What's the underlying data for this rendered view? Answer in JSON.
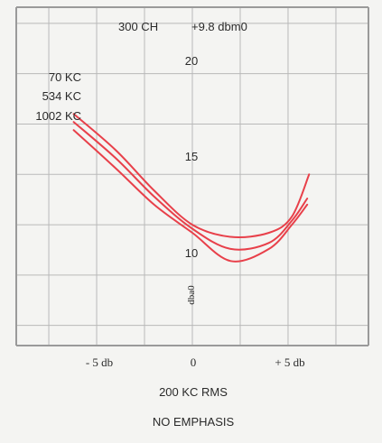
{
  "header": {
    "channels": "300 CH",
    "level": "+9.8 dbm0"
  },
  "curve_labels": [
    "70 KC",
    "534 KC",
    "1002 KC"
  ],
  "footer": {
    "xlabel": "200 KC RMS",
    "note": "NO EMPHASIS"
  },
  "colors": {
    "curves": "#e8404a",
    "grid": "#b9b9b9"
  },
  "chart_data": {
    "type": "line",
    "title": "300 CH  +9.8 dbm0",
    "xlabel": "200 KC RMS",
    "ylabel": "dba0",
    "x_tick_labels": [
      "- 5 db",
      "0",
      "+ 5 db"
    ],
    "x_ticks": [
      -5,
      0,
      5
    ],
    "y_ticks": [
      10,
      15,
      20
    ],
    "y_tick_labels": [
      "10",
      "15",
      "20"
    ],
    "xlim": [
      -9.2,
      9.2
    ],
    "ylim": [
      6.5,
      23.3
    ],
    "grid": true,
    "series": [
      {
        "name": "70 KC",
        "x": [
          -6.2,
          -4,
          -2,
          0,
          2,
          4,
          5.2,
          6.1
        ],
        "y": [
          18.0,
          16.2,
          14.2,
          12.5,
          11.9,
          12.1,
          12.9,
          15.0
        ]
      },
      {
        "name": "534 KC",
        "x": [
          -6.2,
          -4,
          -2,
          0,
          2,
          4,
          5.2,
          6.0
        ],
        "y": [
          17.6,
          15.8,
          13.9,
          12.3,
          11.3,
          11.6,
          12.7,
          13.8
        ]
      },
      {
        "name": "1002 KC",
        "x": [
          -6.2,
          -4,
          -2,
          0,
          2,
          4,
          5.2,
          6.0
        ],
        "y": [
          17.2,
          15.3,
          13.5,
          12.1,
          10.7,
          11.3,
          12.5,
          13.5
        ]
      }
    ]
  }
}
